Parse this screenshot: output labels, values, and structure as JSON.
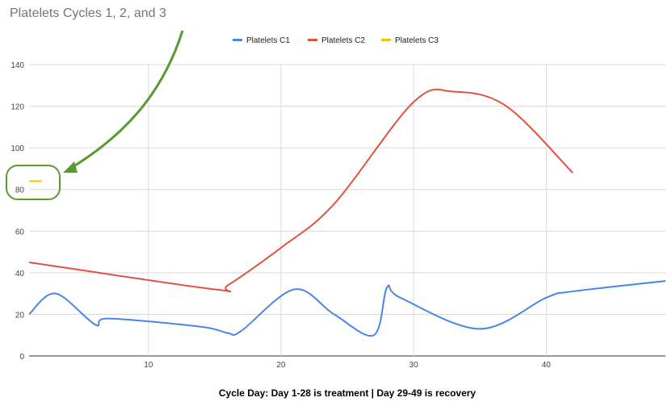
{
  "chart_data": {
    "type": "line",
    "title": "Platelets Cycles 1, 2, and 3",
    "xlabel": "Cycle Day: Day 1-28 is treatment | Day 29-49 is recovery",
    "ylabel": "",
    "xlim": [
      1,
      49
    ],
    "ylim": [
      0,
      140
    ],
    "xticks": [
      10,
      20,
      30,
      40
    ],
    "yticks": [
      0,
      20,
      40,
      60,
      80,
      100,
      120,
      140
    ],
    "grid": true,
    "legend": "top-center",
    "series": [
      {
        "name": "Platelets C1",
        "color": "#4a86e8",
        "points": [
          [
            1,
            20
          ],
          [
            3,
            30
          ],
          [
            6,
            15
          ],
          [
            7,
            18
          ],
          [
            14,
            14
          ],
          [
            16,
            11
          ],
          [
            17,
            12
          ],
          [
            21,
            32
          ],
          [
            24,
            20
          ],
          [
            27,
            10
          ],
          [
            28,
            33
          ],
          [
            29,
            28
          ],
          [
            35,
            13
          ],
          [
            40,
            28
          ],
          [
            42,
            31
          ],
          [
            49,
            36
          ]
        ]
      },
      {
        "name": "Platelets C2",
        "color": "#e15241",
        "points": [
          [
            1,
            45
          ],
          [
            15,
            32
          ],
          [
            16,
            34
          ],
          [
            20,
            52
          ],
          [
            24,
            73
          ],
          [
            30,
            122
          ],
          [
            33,
            127
          ],
          [
            37,
            120
          ],
          [
            42,
            88
          ]
        ]
      },
      {
        "name": "Platelets C3",
        "color": "#f4c20d",
        "points": [
          [
            1,
            84
          ]
        ]
      }
    ]
  }
}
